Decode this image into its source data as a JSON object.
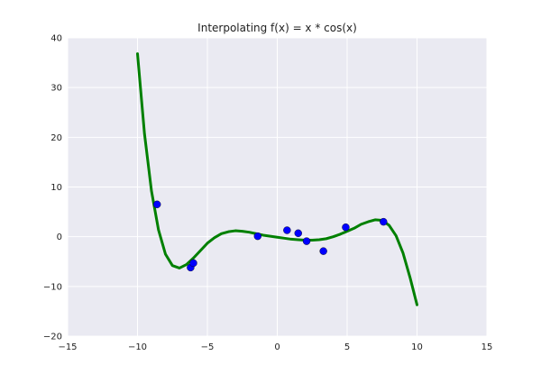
{
  "chart_data": {
    "type": "line",
    "title": "Interpolating f(x) = x * cos(x)",
    "xlabel": "",
    "ylabel": "",
    "xlim": [
      -15,
      15
    ],
    "ylim": [
      -20,
      40
    ],
    "x_ticks": [
      -15,
      -10,
      -5,
      0,
      5,
      10,
      15
    ],
    "y_ticks": [
      -20,
      -10,
      0,
      10,
      20,
      30,
      40
    ],
    "grid": true,
    "colors": {
      "plot_background": "#eaeaf2",
      "grid": "#ffffff",
      "curve": "#008000",
      "points": "#0000ff"
    },
    "series": [
      {
        "kind": "line",
        "x": [
          -10.0,
          -9.5,
          -9.0,
          -8.5,
          -8.0,
          -7.5,
          -7.0,
          -6.5,
          -6.0,
          -5.5,
          -5.0,
          -4.5,
          -4.0,
          -3.5,
          -3.0,
          -2.5,
          -2.0,
          -1.5,
          -1.0,
          -0.5,
          0.0,
          0.5,
          1.0,
          1.5,
          2.0,
          2.5,
          3.0,
          3.5,
          4.0,
          4.5,
          5.0,
          5.5,
          6.0,
          6.5,
          7.0,
          7.5,
          8.0,
          8.5,
          9.0,
          9.5,
          10.0
        ],
        "y": [
          36.8,
          20.7,
          9.2,
          1.4,
          -3.5,
          -5.8,
          -6.3,
          -5.6,
          -4.3,
          -2.8,
          -1.3,
          -0.2,
          0.6,
          1.0,
          1.2,
          1.1,
          0.9,
          0.6,
          0.3,
          0.1,
          -0.1,
          -0.3,
          -0.5,
          -0.6,
          -0.7,
          -0.7,
          -0.6,
          -0.4,
          0.0,
          0.5,
          1.1,
          1.7,
          2.5,
          3.0,
          3.4,
          3.3,
          2.3,
          0.2,
          -3.3,
          -8.2,
          -13.7
        ]
      },
      {
        "kind": "scatter",
        "x": [
          -8.6,
          -6.2,
          -6.0,
          -1.4,
          0.7,
          1.5,
          2.1,
          3.3,
          4.9,
          7.6
        ],
        "y": [
          6.5,
          -6.2,
          -5.3,
          0.1,
          1.3,
          0.7,
          -0.9,
          -2.9,
          1.9,
          3.0
        ]
      }
    ]
  }
}
